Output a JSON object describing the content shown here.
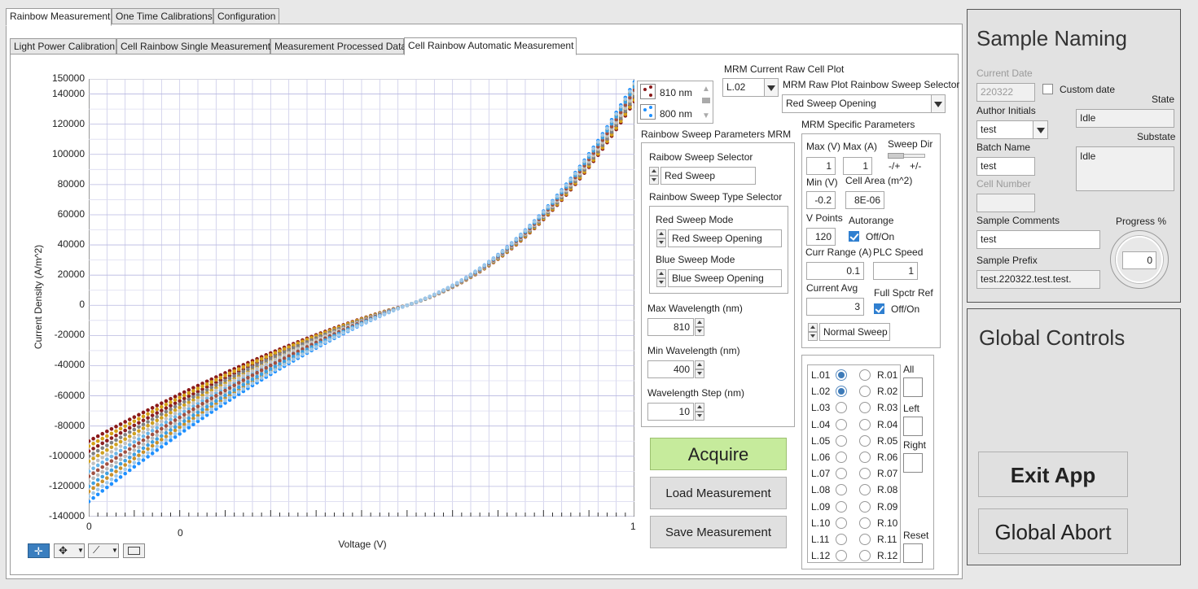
{
  "main_tabs": [
    {
      "label": "Rainbow Measurement"
    },
    {
      "label": "One Time Calibrations"
    },
    {
      "label": "Configuration"
    }
  ],
  "sub_tabs": [
    {
      "label": "Light Power Calibration"
    },
    {
      "label": "Cell Rainbow Single Measurement"
    },
    {
      "label": "Measurement Processed Data"
    },
    {
      "label": "Cell Rainbow Automatic Measurement"
    }
  ],
  "chart_data": {
    "type": "scatter",
    "xlabel": "Voltage (V)",
    "ylabel": "Current Density (A/m^2)",
    "xlim": [
      -0.2,
      1
    ],
    "ylim": [
      -140000,
      150000
    ],
    "y_ticks": [
      "150000",
      "140000",
      "120000",
      "100000",
      "80000",
      "60000",
      "40000",
      "20000",
      "0",
      "-20000",
      "-40000",
      "-60000",
      "-80000",
      "-100000",
      "-120000",
      "-140000"
    ],
    "x_ticks": [
      "0",
      "0",
      "1"
    ],
    "grid": true,
    "series_summary": "IV sweeps for multiple wavelengths (810 nm down to 400 nm)",
    "x_range": [
      -0.2,
      1
    ],
    "series": [
      {
        "name": "810 nm",
        "color": "#8b1a1a",
        "y_start": -90000,
        "y_end": 135000
      },
      {
        "name": "800 nm",
        "color": "#1e90ff",
        "y_start": -130000,
        "y_end": 148000
      }
    ],
    "extra_series_colors": [
      "#d4a017",
      "#8b2020",
      "#808080",
      "#cfa020",
      "#c0c0c0",
      "#6bb6e8",
      "#a05040",
      "#b8b8b8",
      "#3fa0e0",
      "#c8902a",
      "#a0c8e8"
    ]
  },
  "legend": {
    "items": [
      {
        "label": "810 nm",
        "color": "#8b1a1a"
      },
      {
        "label": "800 nm",
        "color": "#1e90ff"
      }
    ]
  },
  "mrm": {
    "current_raw_plot_label": "MRM Current Raw Cell Plot",
    "current_raw_plot_value": "L.02",
    "raw_plot_selector_label": "MRM Raw Plot Rainbow Sweep Selector",
    "raw_plot_selector_value": "Red Sweep Opening"
  },
  "rainbow_params": {
    "title": "Rainbow Sweep Parameters MRM",
    "sweep_selector_label": "Raibow Sweep Selector",
    "sweep_selector_value": "Red Sweep",
    "type_selector_label": "Rainbow Sweep Type Selector",
    "red_mode_label": "Red Sweep Mode",
    "red_mode_value": "Red Sweep Opening",
    "blue_mode_label": "Blue Sweep Mode",
    "blue_mode_value": "Blue Sweep Opening",
    "max_wl_label": "Max Wavelength (nm)",
    "max_wl_value": "810",
    "min_wl_label": "Min Wavelength (nm)",
    "min_wl_value": "400",
    "step_label": "Wavelength Step (nm)",
    "step_value": "10"
  },
  "mrm_specific": {
    "title": "MRM Specific Parameters",
    "max_v_label": "Max (V)",
    "max_v_value": "1",
    "max_a_label": "Max (A)",
    "max_a_value": "1",
    "sweep_dir_label": "Sweep Dir",
    "sweep_dir_left": "-/+",
    "sweep_dir_right": "+/-",
    "min_v_label": "Min (V)",
    "min_v_value": "-0.2",
    "cell_area_label": "Cell Area (m^2)",
    "cell_area_value": "8E-06",
    "v_points_label": "V Points",
    "v_points_value": "120",
    "autorange_label": "Autorange",
    "autorange_option": "Off/On",
    "curr_range_label": "Curr Range (A)",
    "curr_range_value": "0.1",
    "plc_speed_label": "PLC Speed",
    "plc_speed_value": "1",
    "current_avg_label": "Current Avg",
    "current_avg_value": "3",
    "full_spctr_label": "Full Spctr Ref",
    "full_spctr_option": "Off/On",
    "sweep_type_value": "Normal Sweep"
  },
  "cells": {
    "left": [
      {
        "label": "L.01",
        "selected": true
      },
      {
        "label": "L.02",
        "selected": true
      },
      {
        "label": "L.03",
        "selected": false
      },
      {
        "label": "L.04",
        "selected": false
      },
      {
        "label": "L.05",
        "selected": false
      },
      {
        "label": "L.06",
        "selected": false
      },
      {
        "label": "L.07",
        "selected": false
      },
      {
        "label": "L.08",
        "selected": false
      },
      {
        "label": "L.09",
        "selected": false
      },
      {
        "label": "L.10",
        "selected": false
      },
      {
        "label": "L.11",
        "selected": false
      },
      {
        "label": "L.12",
        "selected": false
      }
    ],
    "right": [
      {
        "label": "R.01"
      },
      {
        "label": "R.02"
      },
      {
        "label": "R.03"
      },
      {
        "label": "R.04"
      },
      {
        "label": "R.05"
      },
      {
        "label": "R.06"
      },
      {
        "label": "R.07"
      },
      {
        "label": "R.08"
      },
      {
        "label": "R.09"
      },
      {
        "label": "R.10"
      },
      {
        "label": "R.11"
      },
      {
        "label": "R.12"
      }
    ],
    "all_label": "All",
    "left_label": "Left",
    "right_label": "Right",
    "reset_label": "Reset"
  },
  "actions": {
    "acquire": "Acquire",
    "load": "Load Measurement",
    "save": "Save Measurement"
  },
  "sample_naming": {
    "title": "Sample Naming",
    "current_date_label": "Current Date",
    "current_date_value": "220322",
    "custom_date_label": "Custom date",
    "state_label": "State",
    "state_value": "Idle",
    "author_label": "Author Initials",
    "author_value": "test",
    "substate_label": "Substate",
    "substate_value": "Idle",
    "batch_label": "Batch Name",
    "batch_value": "test",
    "cell_number_label": "Cell Number",
    "cell_number_value": "",
    "comments_label": "Sample Comments",
    "comments_value": "test",
    "progress_label": "Progress %",
    "progress_value": "0",
    "prefix_label": "Sample Prefix",
    "prefix_value": "test.220322.test.test."
  },
  "global_controls": {
    "title": "Global Controls",
    "exit": "Exit App",
    "abort": "Global Abort"
  },
  "icons": {
    "plot_tools": [
      "crosshair-icon",
      "pan-icon",
      "zoom-icon",
      "autoscale-icon"
    ]
  }
}
